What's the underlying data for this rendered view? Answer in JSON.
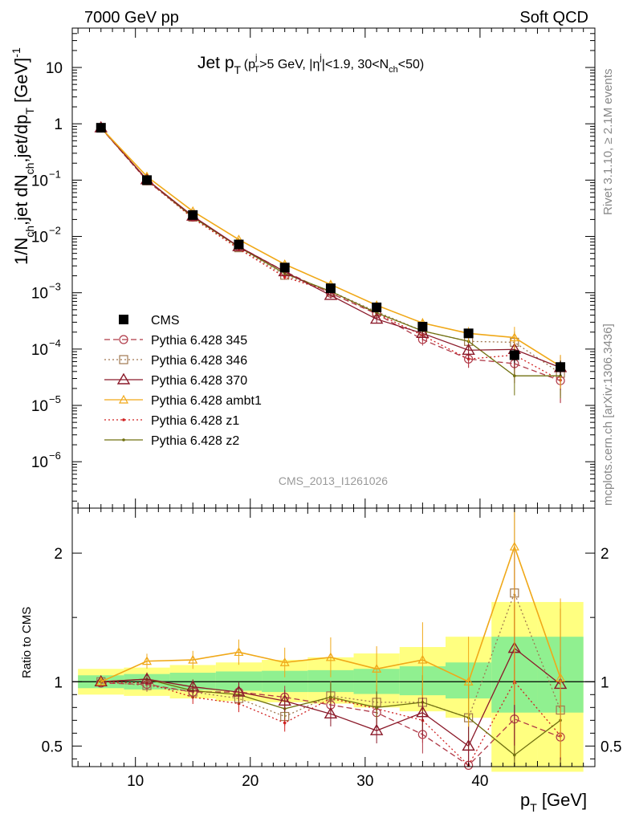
{
  "header": {
    "left": "7000 GeV pp",
    "right": "Soft QCD"
  },
  "side_labels": {
    "rivet": "Rivet 3.1.10, ≥ 2.1M events",
    "mcplots": "mcplots.cern.ch [arXiv:1306.3436]"
  },
  "watermark": "CMS_2013_I1261026",
  "colors": {
    "cms": "#000000",
    "p345": "#b03a48",
    "p346": "#a07850",
    "p370": "#8b1a2a",
    "ambt1": "#f0a818",
    "z1": "#d02020",
    "z2": "#707010",
    "band_yellow": "#ffff80",
    "band_green": "#90f090"
  },
  "chart_data": [
    {
      "type": "line",
      "panel": "main",
      "title_parts": {
        "main": "Jet p",
        "main_sub": "T",
        "cond_open": "(p",
        "cond_sup": "j",
        "cond_sub": "T",
        "cond_mid": ">5 GeV, |η",
        "cond_eta_sup": "j",
        "cond_end_a": "|<1.9, 30<N",
        "cond_nch_sub": "ch",
        "cond_end_b": "<50)"
      },
      "ylabel_parts": {
        "a": "1/N",
        "a_sub": "ch",
        "b": ",jet dN",
        "b_sub": "ch",
        "c": ",jet/dp",
        "c_sub": "T",
        "d": " [GeV]",
        "d_sup": "-1"
      },
      "xlabel_parts": {
        "a": "p",
        "a_sub": "T",
        "b": " [GeV]"
      },
      "y_scale": "log",
      "xlim": [
        4.5,
        50
      ],
      "ylim": [
        1.5e-07,
        50
      ],
      "x_ticks": [
        10,
        20,
        30,
        40
      ],
      "y_ticks": [
        {
          "v": 1e-06,
          "m": "10",
          "e": "−6"
        },
        {
          "v": 1e-05,
          "m": "10",
          "e": "−5"
        },
        {
          "v": 0.0001,
          "m": "10",
          "e": "−4"
        },
        {
          "v": 0.001,
          "m": "10",
          "e": "−3"
        },
        {
          "v": 0.01,
          "m": "10",
          "e": "−2"
        },
        {
          "v": 0.1,
          "m": "10",
          "e": "−1"
        },
        {
          "v": 1,
          "m": "1",
          "e": ""
        },
        {
          "v": 10,
          "m": "10",
          "e": ""
        }
      ],
      "legend_position": "center-left",
      "x": [
        7,
        11,
        15,
        19,
        23,
        27,
        31,
        35,
        39,
        43,
        47
      ],
      "series": [
        {
          "key": "cms",
          "name": "CMS",
          "marker": "square-filled",
          "dash": "",
          "values": [
            0.85,
            0.1,
            0.024,
            0.0072,
            0.0028,
            0.0012,
            0.00055,
            0.00025,
            0.00019,
            7.8e-05,
            4.8e-05
          ]
        },
        {
          "key": "p345",
          "name": "Pythia 6.428 345",
          "marker": "circle-open",
          "dash": "7,4",
          "values": [
            0.84,
            0.098,
            0.022,
            0.0066,
            0.0024,
            0.00098,
            0.00042,
            0.000148,
            6.65e-05,
            5.52e-05,
            2.75e-05
          ]
        },
        {
          "key": "p346",
          "name": "Pythia 6.428 346",
          "marker": "square-open",
          "dash": "2,3",
          "values": [
            0.85,
            0.097,
            0.022,
            0.0063,
            0.00205,
            0.00106,
            0.00046,
            0.00021,
            0.000137,
            0.000132,
            3.72e-05
          ]
        },
        {
          "key": "p370",
          "name": "Pythia 6.428 370",
          "marker": "triangle-open",
          "dash": "",
          "values": [
            0.85,
            0.102,
            0.023,
            0.0066,
            0.00237,
            0.0009,
            0.00034,
            0.00019,
            9.55e-05,
            9.85e-05,
            4.7e-05
          ]
        },
        {
          "key": "ambt1",
          "name": "Pythia 6.428 ambt1",
          "marker": "triangle-open-small",
          "dash": "",
          "values": [
            0.85,
            0.116,
            0.028,
            0.0088,
            0.0032,
            0.0014,
            0.0006,
            0.00029,
            0.00019,
            0.00016,
            4.95e-05
          ]
        },
        {
          "key": "z1",
          "name": "Pythia 6.428 z1",
          "marker": "dot",
          "dash": "2,3",
          "values": [
            0.85,
            0.099,
            0.021,
            0.006,
            0.0019,
            0.00105,
            0.00043,
            0.000175,
            6.65e-05,
            7.85e-05,
            2.8e-05
          ]
        },
        {
          "key": "z2",
          "name": "Pythia 6.428 z2",
          "marker": "dot",
          "dash": "",
          "values": [
            0.85,
            0.102,
            0.022,
            0.0065,
            0.0022,
            0.00106,
            0.00044,
            0.00021,
            0.000137,
            3.35e-05,
            3.35e-05
          ]
        }
      ]
    },
    {
      "type": "line",
      "panel": "ratio",
      "ylabel": "Ratio to CMS",
      "xlim": [
        4.5,
        50
      ],
      "ylim": [
        0.34,
        2.35
      ],
      "x_ticks": [
        10,
        20,
        30,
        40
      ],
      "y_ticks": [
        0.5,
        1,
        2
      ],
      "x": [
        7,
        11,
        15,
        19,
        23,
        27,
        31,
        35,
        39,
        43,
        47
      ],
      "band_edges": [
        5,
        9,
        13,
        17,
        21,
        25,
        29,
        33,
        37,
        41,
        45,
        49
      ],
      "band_yellow": [
        [
          0.9,
          1.1
        ],
        [
          0.89,
          1.11
        ],
        [
          0.87,
          1.13
        ],
        [
          0.85,
          1.15
        ],
        [
          0.84,
          1.17
        ],
        [
          0.83,
          1.19
        ],
        [
          0.8,
          1.22
        ],
        [
          0.77,
          1.27
        ],
        [
          0.72,
          1.35
        ],
        [
          0.3,
          1.62
        ],
        [
          0.3,
          1.62
        ]
      ],
      "band_green": [
        [
          0.95,
          1.05
        ],
        [
          0.94,
          1.06
        ],
        [
          0.935,
          1.07
        ],
        [
          0.93,
          1.08
        ],
        [
          0.92,
          1.085
        ],
        [
          0.92,
          1.09
        ],
        [
          0.905,
          1.1
        ],
        [
          0.895,
          1.12
        ],
        [
          0.87,
          1.15
        ],
        [
          0.76,
          1.35
        ],
        [
          0.76,
          1.35
        ]
      ],
      "series": [
        {
          "key": "p345",
          "values": [
            0.99,
            0.98,
            0.92,
            0.92,
            0.88,
            0.82,
            0.76,
            0.59,
            0.35,
            0.71,
            0.57
          ]
        },
        {
          "key": "p346",
          "values": [
            1.0,
            0.97,
            0.92,
            0.87,
            0.73,
            0.89,
            0.84,
            0.84,
            0.72,
            1.69,
            0.78
          ]
        },
        {
          "key": "p370",
          "values": [
            1.0,
            1.02,
            0.96,
            0.92,
            0.85,
            0.75,
            0.62,
            0.76,
            0.5,
            1.26,
            0.98
          ]
        },
        {
          "key": "ambt1",
          "values": [
            1.0,
            1.16,
            1.17,
            1.23,
            1.15,
            1.19,
            1.1,
            1.17,
            1.0,
            2.05,
            1.03
          ]
        },
        {
          "key": "z1",
          "values": [
            1.0,
            0.99,
            0.88,
            0.83,
            0.68,
            0.87,
            0.79,
            0.7,
            0.35,
            1.0,
            0.58
          ]
        },
        {
          "key": "z2",
          "values": [
            1.0,
            1.02,
            0.93,
            0.9,
            0.79,
            0.88,
            0.8,
            0.84,
            0.72,
            0.43,
            0.7
          ]
        }
      ]
    }
  ]
}
